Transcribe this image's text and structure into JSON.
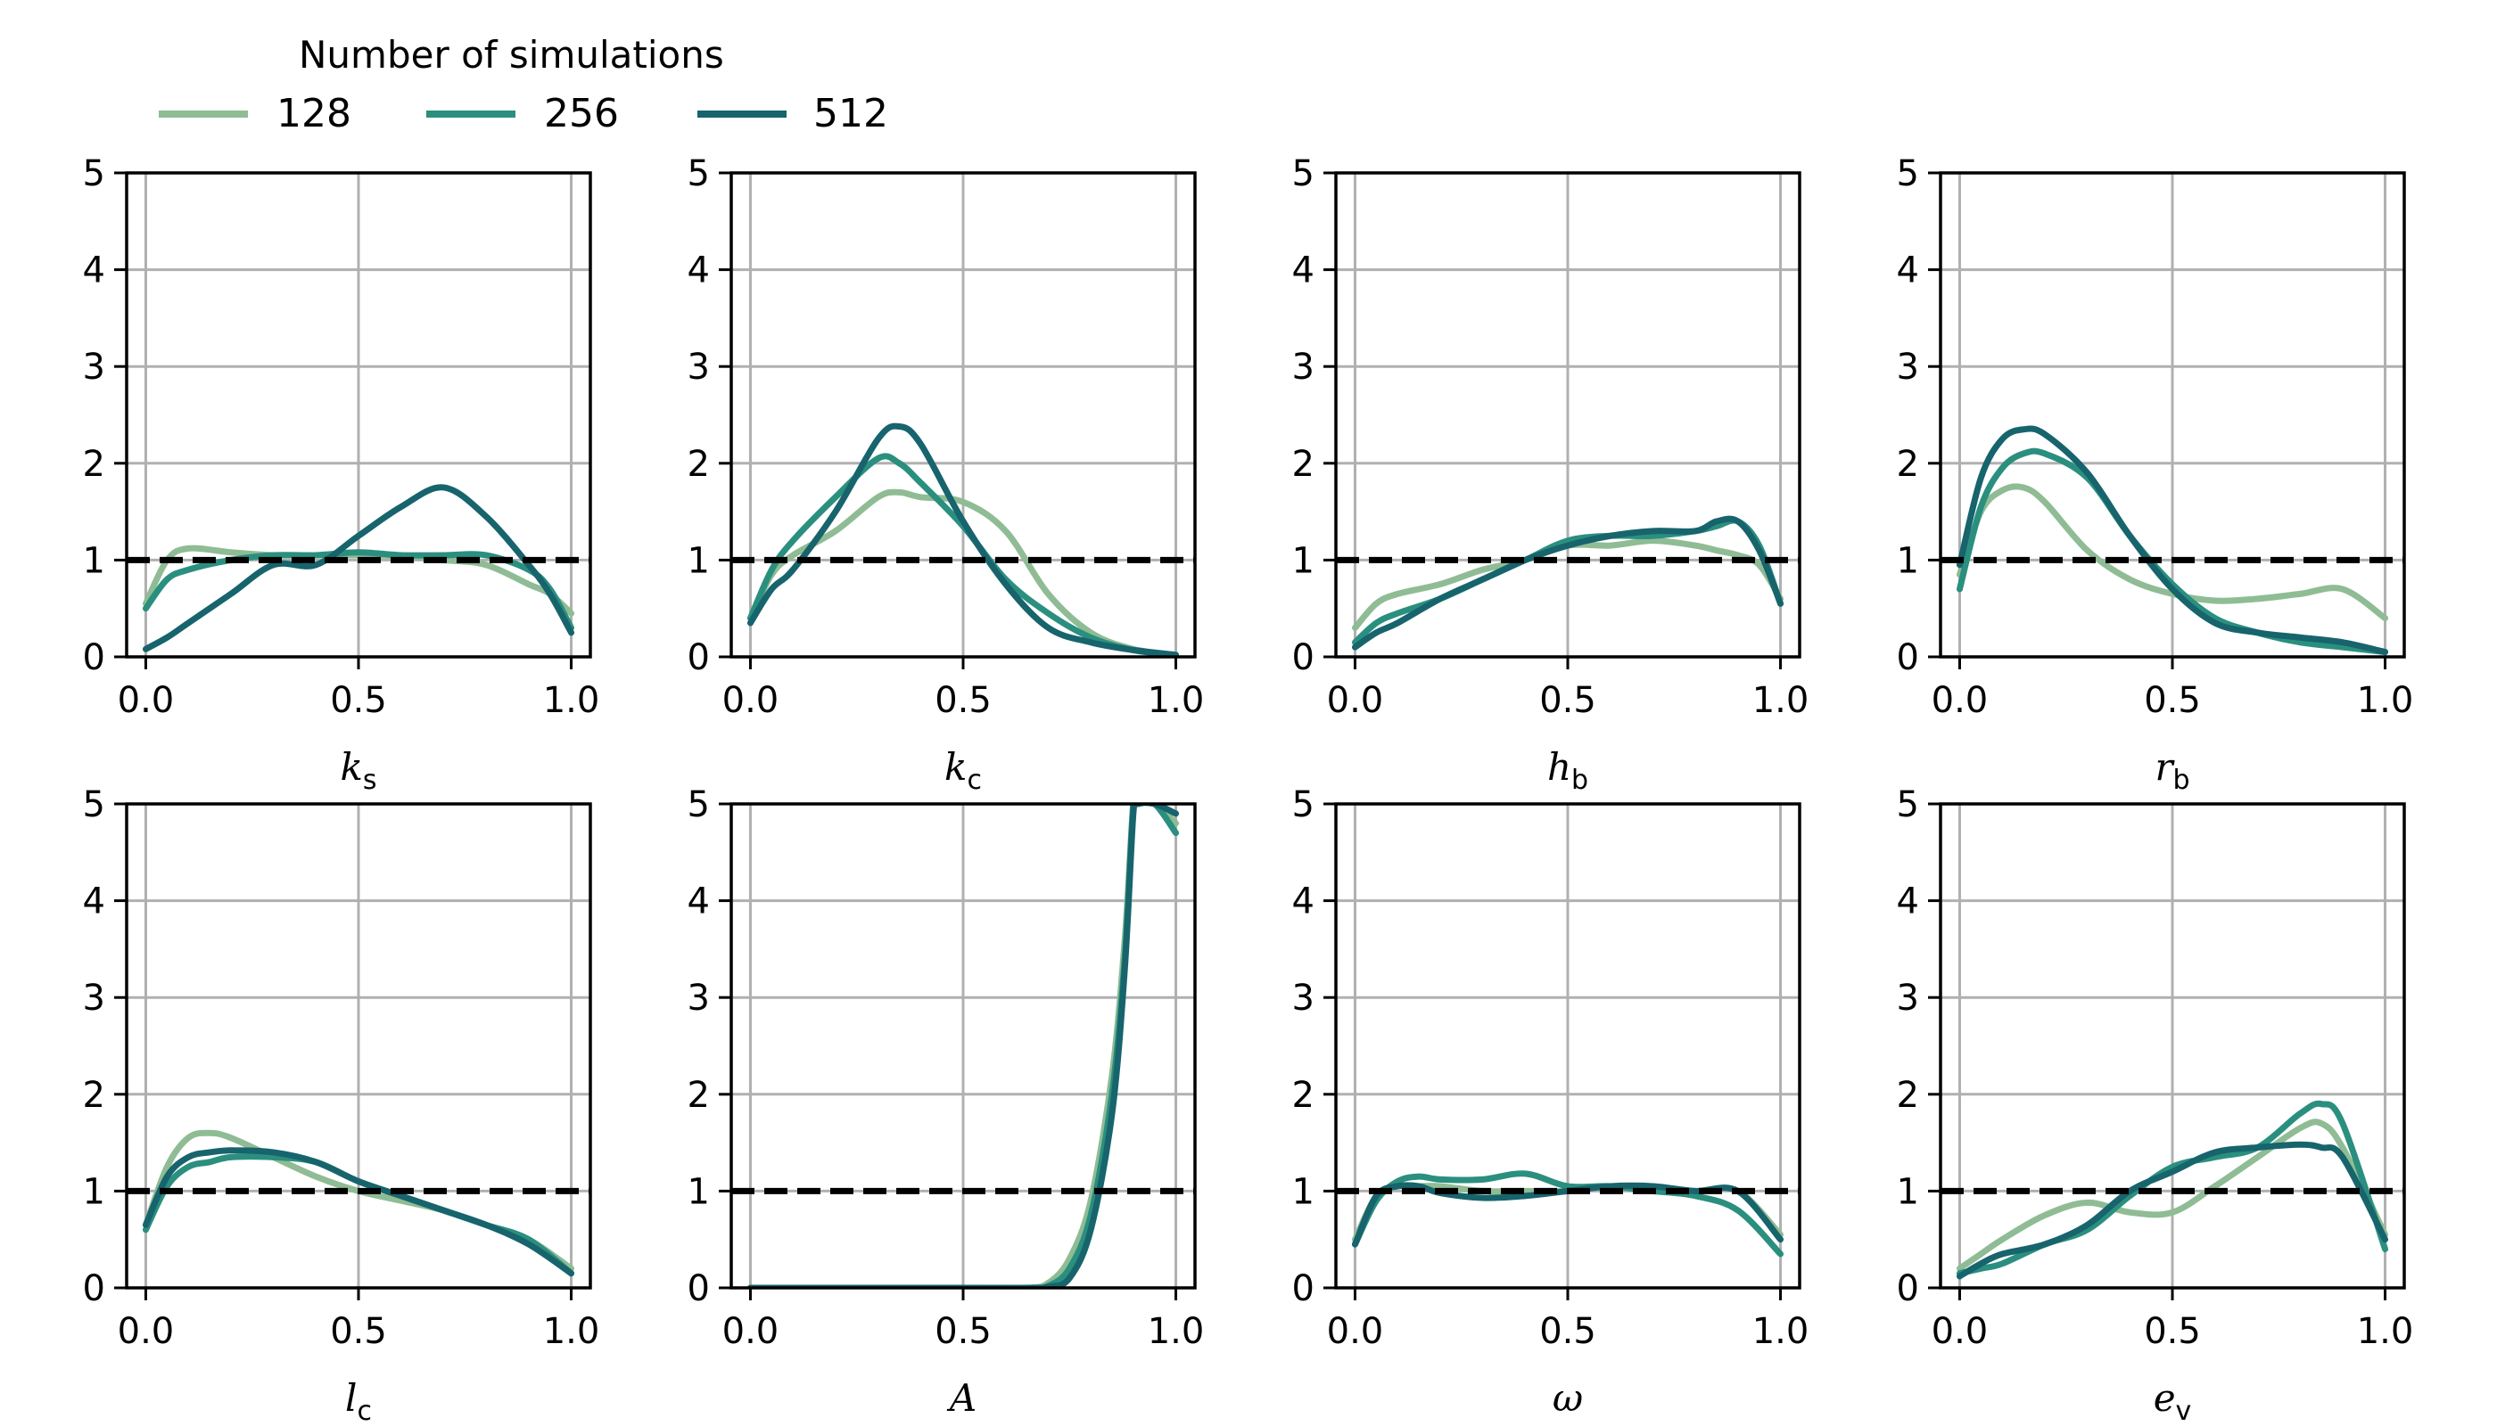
{
  "legend": {
    "title": "Number of simulations",
    "entries": [
      {
        "label": "128",
        "color": "#8fbc94"
      },
      {
        "label": "256",
        "color": "#2a8f7f"
      },
      {
        "label": "512",
        "color": "#17646d"
      }
    ]
  },
  "reference_line": {
    "y": 1,
    "style": "dashed",
    "color": "#000000"
  },
  "chart_data": [
    {
      "type": "line",
      "xlabel": {
        "main": "k",
        "sub": "s"
      },
      "xlim": [
        0,
        1
      ],
      "ylim": [
        0,
        5
      ],
      "xticks": [
        "0.0",
        "0.5",
        "1.0"
      ],
      "yticks": [
        "0",
        "1",
        "2",
        "3",
        "4",
        "5"
      ],
      "grid": true,
      "x": [
        0,
        0.05,
        0.1,
        0.2,
        0.3,
        0.4,
        0.5,
        0.6,
        0.7,
        0.8,
        0.9,
        0.95,
        1.0
      ],
      "series": [
        {
          "name": "128",
          "values": [
            0.55,
            1.0,
            1.12,
            1.08,
            1.05,
            1.05,
            1.05,
            1.04,
            1.0,
            0.95,
            0.75,
            0.65,
            0.45
          ]
        },
        {
          "name": "256",
          "values": [
            0.5,
            0.8,
            0.9,
            1.0,
            1.05,
            1.05,
            1.08,
            1.05,
            1.05,
            1.05,
            0.9,
            0.7,
            0.3
          ]
        },
        {
          "name": "512",
          "values": [
            0.08,
            0.2,
            0.35,
            0.65,
            0.95,
            0.95,
            1.25,
            1.55,
            1.75,
            1.45,
            0.95,
            0.65,
            0.25
          ]
        }
      ]
    },
    {
      "type": "line",
      "xlabel": {
        "main": "k",
        "sub": "c"
      },
      "xlim": [
        0,
        1
      ],
      "ylim": [
        0,
        5
      ],
      "xticks": [
        "0.0",
        "0.5",
        "1.0"
      ],
      "yticks": [
        "0",
        "1",
        "2",
        "3",
        "4",
        "5"
      ],
      "grid": true,
      "x": [
        0,
        0.05,
        0.1,
        0.2,
        0.3,
        0.35,
        0.4,
        0.5,
        0.6,
        0.7,
        0.8,
        0.9,
        1.0
      ],
      "series": [
        {
          "name": "128",
          "values": [
            0.4,
            0.85,
            1.05,
            1.3,
            1.65,
            1.7,
            1.65,
            1.6,
            1.3,
            0.65,
            0.25,
            0.08,
            0.02
          ]
        },
        {
          "name": "256",
          "values": [
            0.4,
            0.9,
            1.2,
            1.65,
            2.05,
            2.0,
            1.8,
            1.35,
            0.8,
            0.45,
            0.2,
            0.07,
            0.02
          ]
        },
        {
          "name": "512",
          "values": [
            0.35,
            0.7,
            0.9,
            1.5,
            2.25,
            2.38,
            2.2,
            1.4,
            0.75,
            0.3,
            0.15,
            0.07,
            0.02
          ]
        }
      ]
    },
    {
      "type": "line",
      "xlabel": {
        "main": "h",
        "sub": "b"
      },
      "xlim": [
        0,
        1
      ],
      "ylim": [
        0,
        5
      ],
      "xticks": [
        "0.0",
        "0.5",
        "1.0"
      ],
      "yticks": [
        "0",
        "1",
        "2",
        "3",
        "4",
        "5"
      ],
      "grid": true,
      "x": [
        0,
        0.05,
        0.1,
        0.2,
        0.3,
        0.4,
        0.5,
        0.6,
        0.7,
        0.8,
        0.85,
        0.9,
        0.95,
        1.0
      ],
      "series": [
        {
          "name": "128",
          "values": [
            0.3,
            0.55,
            0.65,
            0.75,
            0.9,
            1.0,
            1.15,
            1.15,
            1.2,
            1.15,
            1.1,
            1.05,
            0.95,
            0.6
          ]
        },
        {
          "name": "256",
          "values": [
            0.15,
            0.35,
            0.45,
            0.6,
            0.8,
            1.0,
            1.2,
            1.25,
            1.25,
            1.3,
            1.35,
            1.4,
            1.15,
            0.55
          ]
        },
        {
          "name": "512",
          "values": [
            0.1,
            0.25,
            0.35,
            0.6,
            0.8,
            1.0,
            1.15,
            1.25,
            1.3,
            1.3,
            1.4,
            1.4,
            1.1,
            0.55
          ]
        }
      ]
    },
    {
      "type": "line",
      "xlabel": {
        "main": "r",
        "sub": "b"
      },
      "xlim": [
        0,
        1
      ],
      "ylim": [
        0,
        5
      ],
      "xticks": [
        "0.0",
        "0.5",
        "1.0"
      ],
      "yticks": [
        "0",
        "1",
        "2",
        "3",
        "4",
        "5"
      ],
      "grid": true,
      "x": [
        0,
        0.05,
        0.1,
        0.15,
        0.2,
        0.3,
        0.4,
        0.5,
        0.6,
        0.7,
        0.8,
        0.9,
        1.0
      ],
      "series": [
        {
          "name": "128",
          "values": [
            0.85,
            1.5,
            1.72,
            1.75,
            1.6,
            1.1,
            0.8,
            0.65,
            0.58,
            0.6,
            0.65,
            0.7,
            0.4
          ]
        },
        {
          "name": "256",
          "values": [
            0.7,
            1.55,
            1.95,
            2.1,
            2.1,
            1.85,
            1.25,
            0.75,
            0.4,
            0.25,
            0.15,
            0.1,
            0.05
          ]
        },
        {
          "name": "512",
          "values": [
            0.95,
            1.85,
            2.25,
            2.35,
            2.3,
            1.9,
            1.25,
            0.7,
            0.35,
            0.25,
            0.2,
            0.15,
            0.05
          ]
        }
      ]
    },
    {
      "type": "line",
      "xlabel": {
        "main": "l",
        "sub": "c"
      },
      "xlim": [
        0,
        1
      ],
      "ylim": [
        0,
        5
      ],
      "xticks": [
        "0.0",
        "0.5",
        "1.0"
      ],
      "yticks": [
        "0",
        "1",
        "2",
        "3",
        "4",
        "5"
      ],
      "grid": true,
      "x": [
        0,
        0.05,
        0.1,
        0.15,
        0.2,
        0.3,
        0.4,
        0.5,
        0.6,
        0.7,
        0.8,
        0.9,
        1.0
      ],
      "series": [
        {
          "name": "128",
          "values": [
            0.65,
            1.25,
            1.55,
            1.6,
            1.55,
            1.35,
            1.15,
            1.0,
            0.9,
            0.8,
            0.65,
            0.5,
            0.2
          ]
        },
        {
          "name": "256",
          "values": [
            0.6,
            1.05,
            1.25,
            1.3,
            1.35,
            1.35,
            1.3,
            1.1,
            0.95,
            0.8,
            0.65,
            0.5,
            0.15
          ]
        },
        {
          "name": "512",
          "values": [
            0.65,
            1.15,
            1.35,
            1.4,
            1.42,
            1.4,
            1.3,
            1.1,
            0.95,
            0.8,
            0.65,
            0.45,
            0.15
          ]
        }
      ]
    },
    {
      "type": "line",
      "xlabel": {
        "main": "A",
        "sub": ""
      },
      "xlim": [
        0,
        1
      ],
      "ylim": [
        0,
        5
      ],
      "xticks": [
        "0.0",
        "0.5",
        "1.0"
      ],
      "yticks": [
        "0",
        "1",
        "2",
        "3",
        "4",
        "5"
      ],
      "grid": true,
      "x": [
        0,
        0.5,
        0.65,
        0.7,
        0.75,
        0.8,
        0.85,
        0.88,
        0.9,
        0.91,
        0.95,
        1.0
      ],
      "series": [
        {
          "name": "128",
          "values": [
            0,
            0,
            0,
            0.05,
            0.3,
            0.9,
            2.2,
            3.6,
            5.0,
            5.0,
            5.0,
            4.8
          ]
        },
        {
          "name": "256",
          "values": [
            0,
            0,
            0,
            0.02,
            0.2,
            0.75,
            2.0,
            3.4,
            5.0,
            5.0,
            5.0,
            4.7
          ]
        },
        {
          "name": "512",
          "values": [
            0,
            0,
            0,
            0.01,
            0.1,
            0.6,
            1.8,
            3.3,
            4.9,
            5.0,
            5.0,
            4.9
          ]
        }
      ]
    },
    {
      "type": "line",
      "xlabel": {
        "main": "ω",
        "sub": ""
      },
      "xlim": [
        0,
        1
      ],
      "ylim": [
        0,
        5
      ],
      "xticks": [
        "0.0",
        "0.5",
        "1.0"
      ],
      "yticks": [
        "0",
        "1",
        "2",
        "3",
        "4",
        "5"
      ],
      "grid": true,
      "x": [
        0,
        0.05,
        0.1,
        0.15,
        0.2,
        0.3,
        0.4,
        0.5,
        0.6,
        0.7,
        0.8,
        0.9,
        1.0
      ],
      "series": [
        {
          "name": "128",
          "values": [
            0.5,
            0.95,
            1.05,
            1.05,
            1.05,
            1.0,
            1.0,
            1.0,
            1.05,
            1.0,
            1.0,
            1.0,
            0.55
          ]
        },
        {
          "name": "256",
          "values": [
            0.45,
            0.9,
            1.1,
            1.15,
            1.12,
            1.12,
            1.18,
            1.05,
            1.05,
            1.0,
            0.95,
            0.8,
            0.35
          ]
        },
        {
          "name": "512",
          "values": [
            0.45,
            0.95,
            1.05,
            1.05,
            0.98,
            0.93,
            0.95,
            1.0,
            1.05,
            1.05,
            1.0,
            1.0,
            0.5
          ]
        }
      ]
    },
    {
      "type": "line",
      "xlabel": {
        "main": "e",
        "sub": "v"
      },
      "xlim": [
        0,
        1
      ],
      "ylim": [
        0,
        5
      ],
      "xticks": [
        "0.0",
        "0.5",
        "1.0"
      ],
      "yticks": [
        "0",
        "1",
        "2",
        "3",
        "4",
        "5"
      ],
      "grid": true,
      "x": [
        0,
        0.05,
        0.1,
        0.2,
        0.3,
        0.4,
        0.5,
        0.6,
        0.7,
        0.8,
        0.85,
        0.9,
        1.0
      ],
      "series": [
        {
          "name": "128",
          "values": [
            0.2,
            0.35,
            0.5,
            0.75,
            0.88,
            0.78,
            0.78,
            1.05,
            1.35,
            1.65,
            1.7,
            1.45,
            0.55
          ]
        },
        {
          "name": "256",
          "values": [
            0.15,
            0.2,
            0.25,
            0.45,
            0.6,
            0.95,
            1.25,
            1.35,
            1.45,
            1.8,
            1.9,
            1.7,
            0.4
          ]
        },
        {
          "name": "512",
          "values": [
            0.12,
            0.25,
            0.35,
            0.45,
            0.65,
            1.0,
            1.2,
            1.4,
            1.45,
            1.48,
            1.45,
            1.35,
            0.5
          ]
        }
      ]
    }
  ]
}
